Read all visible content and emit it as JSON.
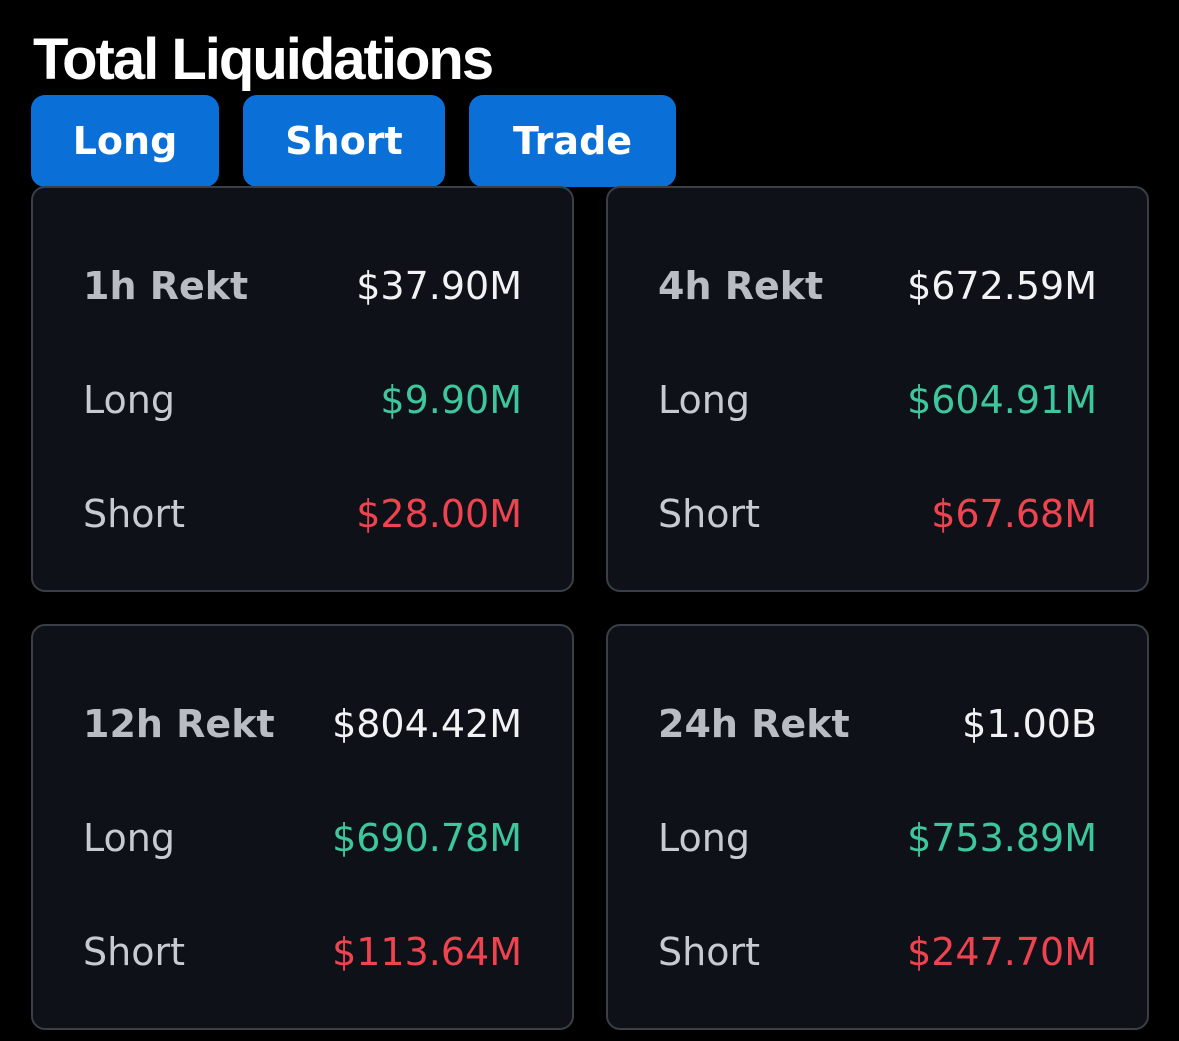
{
  "page": {
    "title": "Total Liquidations"
  },
  "tabs": [
    {
      "label": "Long"
    },
    {
      "label": "Short"
    },
    {
      "label": "Trade"
    }
  ],
  "cards": [
    {
      "period_label": "1h Rekt",
      "total": "$37.90M",
      "long_label": "Long",
      "long": "$9.90M",
      "short_label": "Short",
      "short": "$28.00M"
    },
    {
      "period_label": "4h Rekt",
      "total": "$672.59M",
      "long_label": "Long",
      "long": "$604.91M",
      "short_label": "Short",
      "short": "$67.68M"
    },
    {
      "period_label": "12h Rekt",
      "total": "$804.42M",
      "long_label": "Long",
      "long": "$690.78M",
      "short_label": "Short",
      "short": "$113.64M"
    },
    {
      "period_label": "24h Rekt",
      "total": "$1.00B",
      "long_label": "Long",
      "long": "$753.89M",
      "short_label": "Short",
      "short": "$247.70M"
    }
  ],
  "colors": {
    "background": "#000000",
    "card_background": "#0e1117",
    "card_border": "#3a3f47",
    "tab_accent": "#0a6fd6",
    "long_value": "#3ec79d",
    "short_value": "#ef4350",
    "total_value": "#f1f2f4"
  }
}
